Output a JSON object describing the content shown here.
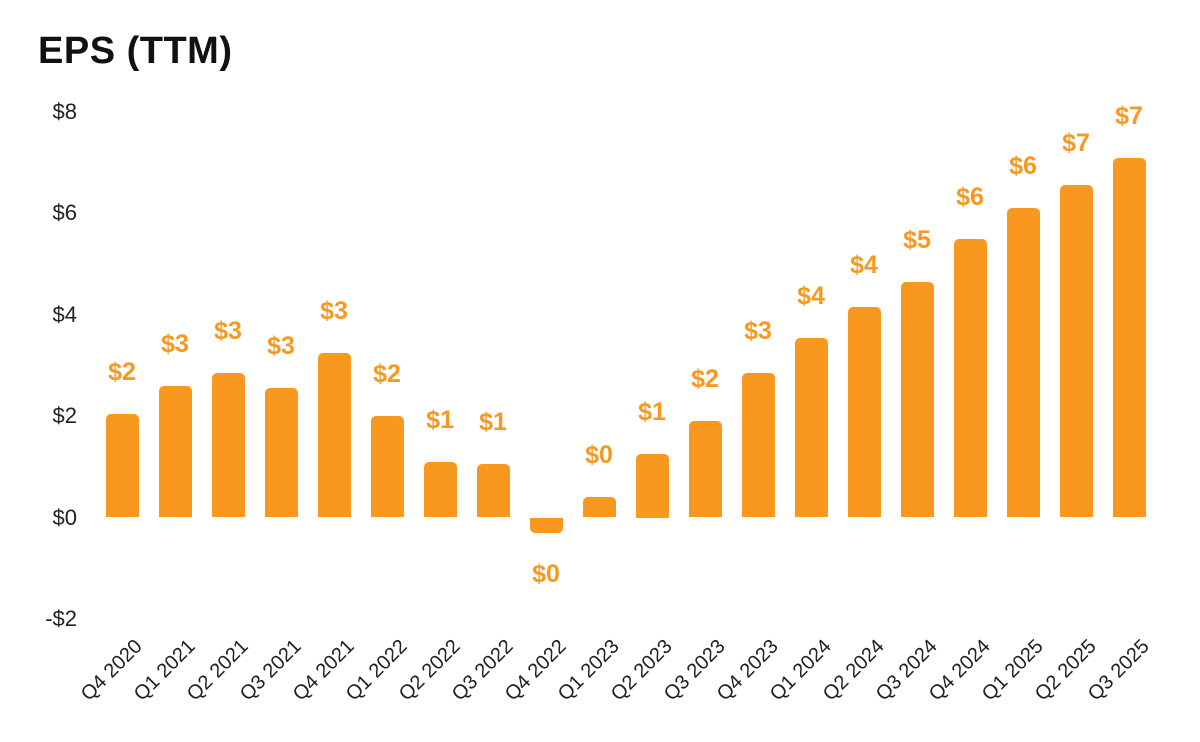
{
  "chart_data": {
    "type": "bar",
    "title": "EPS (TTM)",
    "categories": [
      "Q4 2020",
      "Q1 2021",
      "Q2 2021",
      "Q3 2021",
      "Q4 2021",
      "Q1 2022",
      "Q2 2022",
      "Q3 2022",
      "Q4 2022",
      "Q1 2023",
      "Q2 2023",
      "Q3 2023",
      "Q4 2023",
      "Q1 2024",
      "Q2 2024",
      "Q3 2024",
      "Q4 2024",
      "Q1 2025",
      "Q2 2025",
      "Q3 2025"
    ],
    "values": [
      2.05,
      2.6,
      2.85,
      2.55,
      3.25,
      2.0,
      1.1,
      1.05,
      -0.3,
      0.4,
      1.25,
      1.9,
      2.85,
      3.55,
      4.15,
      4.65,
      5.5,
      6.1,
      6.55,
      7.1
    ],
    "bar_value_labels": [
      "$2",
      "$3",
      "$3",
      "$3",
      "$3",
      "$2",
      "$1",
      "$1",
      "$0",
      "$0",
      "$1",
      "$2",
      "$3",
      "$4",
      "$4",
      "$5",
      "$6",
      "$6",
      "$7",
      "$7"
    ],
    "y_axis": {
      "tick_labels": [
        "$8",
        "$6",
        "$4",
        "$2",
        "$0",
        "-$2"
      ],
      "tick_values": [
        8,
        6,
        4,
        2,
        0,
        -2
      ],
      "range": [
        -2,
        8
      ]
    },
    "xlabel": "",
    "ylabel": "",
    "grid": false,
    "legend": false,
    "x_label_rotation_deg": 45,
    "colors": {
      "bar": "#F9981E",
      "value_label": "#F9981E",
      "axis_text": "#212121",
      "title_text": "#111111",
      "background": "#FFFFFF"
    }
  }
}
